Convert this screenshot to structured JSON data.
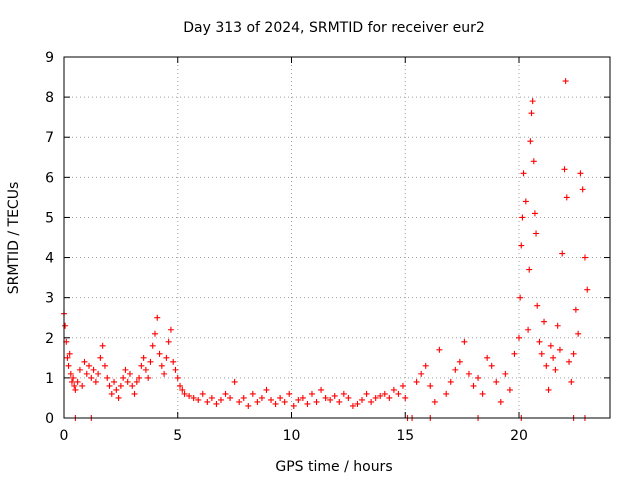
{
  "chart_data": {
    "type": "scatter",
    "title": "Day 313 of 2024, SRMTID for receiver eur2",
    "xlabel": "GPS time / hours",
    "ylabel": "SRMTID / TECUs",
    "xlim": [
      0,
      24
    ],
    "ylim": [
      0,
      9
    ],
    "xticks": [
      0,
      5,
      10,
      15,
      20
    ],
    "yticks": [
      0,
      1,
      2,
      3,
      4,
      5,
      6,
      7,
      8,
      9
    ],
    "xtick_labels": [
      "0",
      "5",
      "10",
      "15",
      "20"
    ],
    "ytick_labels": [
      "0",
      "1",
      "2",
      "3",
      "4",
      "5",
      "6",
      "7",
      "8",
      "9"
    ],
    "grid": true,
    "marker": "plus",
    "color": "#ff0000",
    "series": [
      {
        "name": "SRMTID",
        "x": [
          0.0,
          0.05,
          0.1,
          0.15,
          0.2,
          0.25,
          0.3,
          0.35,
          0.4,
          0.45,
          0.5,
          0.6,
          0.7,
          0.8,
          0.9,
          1.0,
          1.1,
          1.2,
          1.3,
          1.4,
          1.5,
          1.6,
          1.7,
          1.8,
          1.9,
          2.0,
          2.1,
          2.2,
          2.3,
          2.4,
          2.5,
          2.6,
          2.7,
          2.8,
          2.9,
          3.0,
          3.1,
          3.2,
          3.3,
          3.4,
          3.5,
          3.6,
          3.7,
          3.8,
          3.9,
          4.0,
          4.1,
          4.2,
          4.3,
          4.4,
          4.5,
          4.6,
          4.7,
          4.8,
          4.9,
          5.0,
          5.1,
          5.2,
          5.3,
          5.5,
          5.7,
          5.9,
          6.1,
          6.3,
          6.5,
          6.7,
          6.9,
          7.1,
          7.3,
          7.5,
          7.7,
          7.9,
          8.1,
          8.3,
          8.5,
          8.7,
          8.9,
          9.1,
          9.3,
          9.5,
          9.7,
          9.9,
          10.1,
          10.3,
          10.5,
          10.7,
          10.9,
          11.1,
          11.3,
          11.5,
          11.7,
          11.9,
          12.1,
          12.3,
          12.5,
          12.7,
          12.9,
          13.1,
          13.3,
          13.5,
          13.7,
          13.9,
          14.1,
          14.3,
          14.5,
          14.7,
          14.9,
          15.0,
          15.5,
          15.7,
          15.9,
          16.1,
          16.3,
          16.5,
          16.8,
          17.0,
          17.2,
          17.4,
          17.6,
          17.8,
          18.0,
          18.2,
          18.4,
          18.6,
          18.8,
          19.0,
          19.2,
          19.4,
          19.6,
          19.8,
          20.0,
          20.05,
          20.1,
          20.15,
          20.2,
          20.3,
          20.4,
          20.45,
          20.5,
          20.55,
          20.6,
          20.65,
          20.7,
          20.75,
          20.8,
          20.9,
          21.0,
          21.1,
          21.2,
          21.3,
          21.4,
          21.5,
          21.6,
          21.7,
          21.8,
          21.9,
          22.0,
          22.05,
          22.1,
          22.2,
          22.3,
          22.4,
          22.5,
          22.6,
          22.7,
          22.8,
          22.9,
          23.0
        ],
        "y": [
          2.6,
          2.3,
          1.9,
          1.5,
          1.3,
          1.6,
          1.1,
          0.9,
          1.0,
          0.8,
          0.7,
          0.9,
          1.2,
          0.8,
          1.4,
          1.1,
          1.3,
          1.0,
          1.2,
          0.9,
          1.1,
          1.5,
          1.8,
          1.3,
          1.0,
          0.8,
          0.6,
          0.9,
          0.7,
          0.5,
          0.8,
          1.0,
          1.2,
          0.9,
          1.1,
          0.8,
          0.6,
          0.9,
          1.0,
          1.3,
          1.5,
          1.2,
          1.0,
          1.4,
          1.8,
          2.1,
          2.5,
          1.6,
          1.3,
          1.1,
          1.5,
          1.9,
          2.2,
          1.4,
          1.2,
          1.0,
          0.8,
          0.7,
          0.6,
          0.55,
          0.5,
          0.45,
          0.6,
          0.4,
          0.5,
          0.35,
          0.45,
          0.6,
          0.5,
          0.9,
          0.4,
          0.5,
          0.3,
          0.6,
          0.4,
          0.5,
          0.7,
          0.45,
          0.35,
          0.5,
          0.4,
          0.6,
          0.3,
          0.45,
          0.5,
          0.35,
          0.6,
          0.4,
          0.7,
          0.5,
          0.45,
          0.55,
          0.4,
          0.6,
          0.5,
          0.3,
          0.35,
          0.45,
          0.6,
          0.4,
          0.5,
          0.55,
          0.6,
          0.5,
          0.7,
          0.6,
          0.8,
          0.5,
          0.9,
          1.1,
          1.3,
          0.8,
          0.4,
          1.7,
          0.6,
          0.9,
          1.2,
          1.4,
          1.9,
          1.1,
          0.8,
          1.0,
          0.6,
          1.5,
          1.3,
          0.9,
          0.4,
          1.1,
          0.7,
          1.6,
          2.0,
          3.0,
          4.3,
          5.0,
          6.1,
          5.4,
          2.2,
          3.7,
          6.9,
          7.6,
          7.9,
          6.4,
          5.1,
          4.6,
          2.8,
          1.9,
          1.6,
          2.4,
          1.3,
          0.7,
          1.8,
          1.5,
          1.2,
          2.3,
          1.7,
          4.1,
          6.2,
          8.4,
          5.5,
          1.4,
          0.9,
          1.6,
          2.7,
          2.1,
          6.1,
          5.7,
          4.0,
          3.2
        ]
      }
    ],
    "baseline_points_x": [
      0.5,
      1.2,
      15.1,
      15.3,
      16.1,
      18.2,
      20.1,
      22.4,
      22.9
    ]
  }
}
